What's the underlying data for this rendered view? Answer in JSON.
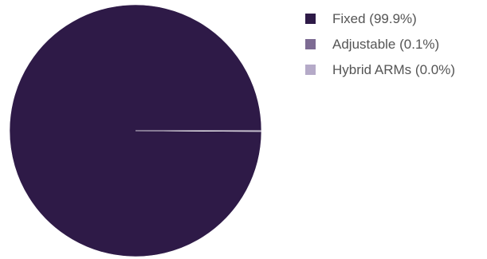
{
  "chart_data": {
    "type": "pie",
    "title": "",
    "legend_position": "right",
    "slices": [
      {
        "label": "Fixed",
        "percent": 99.9,
        "color": "#2e1a47"
      },
      {
        "label": "Adjustable",
        "percent": 0.1,
        "color": "#7d6b93"
      },
      {
        "label": "Hybrid ARMs",
        "percent": 0.0,
        "color": "#b5aac8"
      }
    ],
    "legend": [
      {
        "label": "Fixed (99.9%)",
        "color": "#2e1a47"
      },
      {
        "label": "Adjustable (0.1%)",
        "color": "#7d6b93"
      },
      {
        "label": "Hybrid ARMs (0.0%)",
        "color": "#b5aac8"
      }
    ]
  }
}
